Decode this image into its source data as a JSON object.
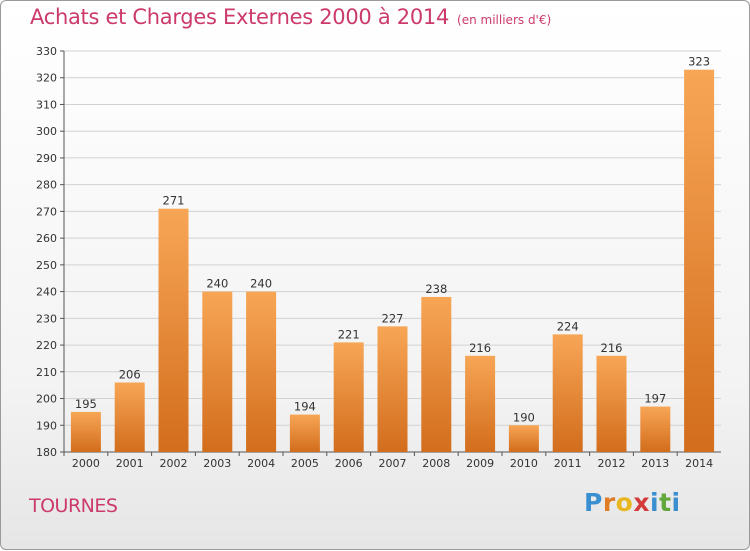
{
  "title": "Achats et Charges Externes 2000 à 2014",
  "unit": "(en milliers d'€)",
  "city": "TOURNES",
  "logo": "Proxiti",
  "colors": {
    "title": "#cc3a6b",
    "bar_top": "#f7a656",
    "bar_bottom": "#d26d1c",
    "grid": "#d2d2d2"
  },
  "chart_data": {
    "type": "bar",
    "categories": [
      "2000",
      "2001",
      "2002",
      "2003",
      "2004",
      "2005",
      "2006",
      "2007",
      "2008",
      "2009",
      "2010",
      "2011",
      "2012",
      "2013",
      "2014"
    ],
    "values": [
      195,
      206,
      271,
      240,
      240,
      194,
      221,
      227,
      238,
      216,
      190,
      224,
      216,
      197,
      323
    ],
    "ylim": [
      180,
      330
    ],
    "yticks": [
      180,
      190,
      200,
      210,
      220,
      230,
      240,
      250,
      260,
      270,
      280,
      290,
      300,
      310,
      320,
      330
    ],
    "grid": true,
    "xlabel": "",
    "ylabel": ""
  }
}
